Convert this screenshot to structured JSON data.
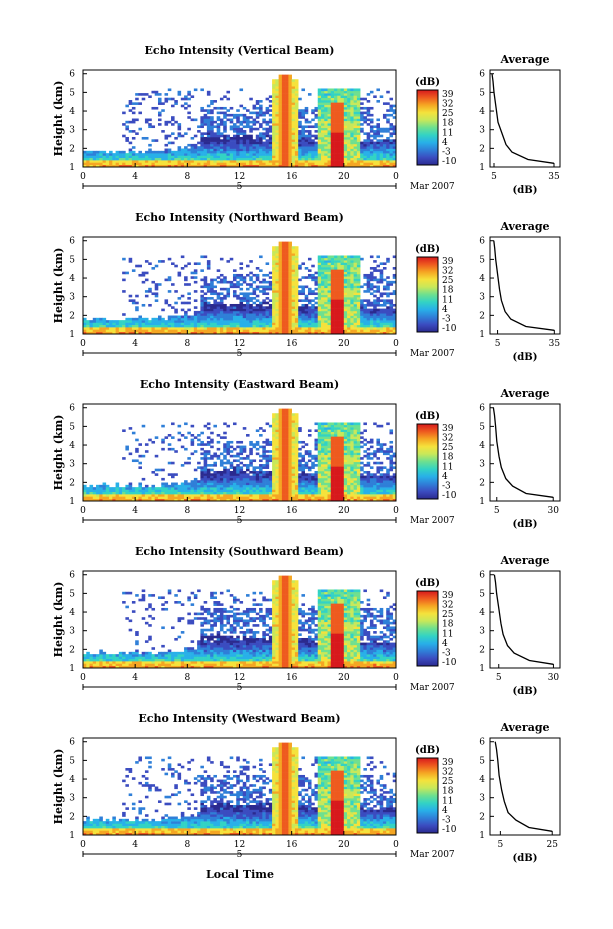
{
  "figure": {
    "xaxis_title": "Local Time",
    "date_label": "Mar 2007",
    "date_day": "5",
    "colorbar_unit": "(dB)",
    "colorbar_ticks": [
      "39",
      "32",
      "25",
      "18",
      "11",
      "4",
      "-3",
      "-10"
    ],
    "avg_title": "Average",
    "avg_xlabel": "(dB)"
  },
  "colors": {
    "colormap": [
      "#2b2a8f",
      "#3b4cc0",
      "#2f7fd8",
      "#28b0e8",
      "#33d3c4",
      "#6ee08f",
      "#c8e85a",
      "#f5e23c",
      "#f5a623",
      "#ee5a1f",
      "#d7191c"
    ]
  },
  "chart_data": [
    {
      "type": "heatmap",
      "title": "Echo Intensity (Vertical Beam)",
      "ylabel": "Height (km)",
      "xticks": [
        "0",
        "4",
        "8",
        "12",
        "16",
        "20",
        "0"
      ],
      "xlim": [
        0,
        24
      ],
      "yticks": [
        "1",
        "2",
        "3",
        "4",
        "5",
        "6"
      ],
      "ylim": [
        1,
        6.2
      ],
      "colorbar_range": [
        -10,
        39
      ],
      "profile": {
        "title": "Average",
        "xlabel": "(dB)",
        "xticks": [
          "5",
          "35"
        ],
        "xlim": [
          3,
          38
        ],
        "yticks": [
          "1",
          "2",
          "3",
          "4",
          "5",
          "6"
        ],
        "x": [
          35,
          22,
          14,
          11,
          9,
          7,
          6,
          5,
          4.5,
          4
        ],
        "y": [
          1.2,
          1.4,
          1.8,
          2.2,
          2.8,
          3.4,
          4.2,
          5.0,
          5.6,
          6.0
        ]
      }
    },
    {
      "type": "heatmap",
      "title": "Echo Intensity (Northward Beam)",
      "ylabel": "Height (km)",
      "xticks": [
        "0",
        "4",
        "8",
        "12",
        "16",
        "20",
        "0"
      ],
      "xlim": [
        0,
        24
      ],
      "yticks": [
        "1",
        "2",
        "3",
        "4",
        "5",
        "6"
      ],
      "ylim": [
        1,
        6.2
      ],
      "colorbar_range": [
        -10,
        39
      ],
      "profile": {
        "title": "Average",
        "xlabel": "(dB)",
        "xticks": [
          "5",
          "35"
        ],
        "xlim": [
          1,
          38
        ],
        "yticks": [
          "1",
          "2",
          "3",
          "4",
          "5",
          "6"
        ],
        "x": [
          35,
          20,
          12,
          9,
          7,
          6,
          5,
          4,
          3.5,
          3
        ],
        "y": [
          1.2,
          1.4,
          1.8,
          2.2,
          2.8,
          3.4,
          4.2,
          5.0,
          5.6,
          6.0
        ]
      }
    },
    {
      "type": "heatmap",
      "title": "Echo Intensity (Eastward Beam)",
      "ylabel": "Height (km)",
      "xticks": [
        "0",
        "4",
        "8",
        "12",
        "16",
        "20",
        "0"
      ],
      "xlim": [
        0,
        24
      ],
      "yticks": [
        "1",
        "2",
        "3",
        "4",
        "5",
        "6"
      ],
      "ylim": [
        1,
        6.2
      ],
      "colorbar_range": [
        -10,
        39
      ],
      "profile": {
        "title": "Average",
        "xlabel": "(dB)",
        "xticks": [
          "5",
          "30"
        ],
        "xlim": [
          2,
          33
        ],
        "yticks": [
          "1",
          "2",
          "3",
          "4",
          "5",
          "6"
        ],
        "x": [
          30,
          18,
          12,
          9,
          7,
          6,
          5,
          4.5,
          4,
          3.5
        ],
        "y": [
          1.2,
          1.4,
          1.8,
          2.2,
          2.8,
          3.4,
          4.2,
          5.0,
          5.6,
          6.0
        ]
      }
    },
    {
      "type": "heatmap",
      "title": "Echo Intensity (Southward Beam)",
      "ylabel": "Height (km)",
      "xticks": [
        "0",
        "4",
        "8",
        "12",
        "16",
        "20",
        "0"
      ],
      "xlim": [
        0,
        24
      ],
      "yticks": [
        "1",
        "2",
        "3",
        "4",
        "5",
        "6"
      ],
      "ylim": [
        1,
        6.2
      ],
      "colorbar_range": [
        -10,
        39
      ],
      "profile": {
        "title": "Average",
        "xlabel": "(dB)",
        "xticks": [
          "5",
          "30"
        ],
        "xlim": [
          1,
          33
        ],
        "yticks": [
          "1",
          "2",
          "3",
          "4",
          "5",
          "6"
        ],
        "x": [
          30,
          19,
          12,
          9,
          7,
          6,
          5,
          4,
          3.5,
          3
        ],
        "y": [
          1.2,
          1.4,
          1.8,
          2.2,
          2.8,
          3.4,
          4.2,
          5.0,
          5.6,
          6.0
        ]
      }
    },
    {
      "type": "heatmap",
      "title": "Echo Intensity (Westward Beam)",
      "ylabel": "Height (km)",
      "xticks": [
        "0",
        "4",
        "8",
        "12",
        "16",
        "20",
        "0"
      ],
      "xlim": [
        0,
        24
      ],
      "yticks": [
        "1",
        "2",
        "3",
        "4",
        "5",
        "6"
      ],
      "ylim": [
        1,
        6.2
      ],
      "colorbar_range": [
        -10,
        39
      ],
      "profile": {
        "title": "Average",
        "xlabel": "(dB)",
        "xticks": [
          "5",
          "25"
        ],
        "xlim": [
          1,
          28
        ],
        "yticks": [
          "1",
          "2",
          "3",
          "4",
          "5",
          "6"
        ],
        "x": [
          25,
          16,
          11,
          8,
          6.5,
          5.5,
          4.5,
          4,
          3.5,
          3
        ],
        "y": [
          1.2,
          1.4,
          1.8,
          2.2,
          2.8,
          3.4,
          4.2,
          5.0,
          5.6,
          6.0
        ]
      }
    }
  ]
}
